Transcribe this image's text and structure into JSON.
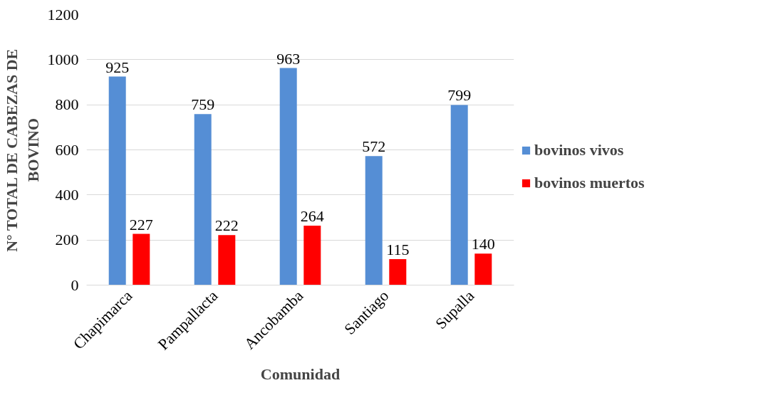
{
  "chart_data": {
    "type": "bar",
    "xlabel": "Comunidad",
    "ylabel": "N° TOTAL DE CABEZAS DE BOVINO",
    "categories": [
      "Chapimarca",
      "Pampallacta",
      "Ancobamba",
      "Santiago",
      "Supalla"
    ],
    "series": [
      {
        "name": "bovinos vivos",
        "color": "#558ed5",
        "values": [
          925,
          759,
          963,
          572,
          799
        ]
      },
      {
        "name": "bovinos muertos",
        "color": "#ff0000",
        "values": [
          227,
          222,
          264,
          115,
          140
        ]
      }
    ],
    "ylim": [
      0,
      1200
    ],
    "yticks": [
      0,
      200,
      400,
      600,
      800,
      1000,
      1200
    ],
    "grid": "y",
    "legend": "right",
    "data_labels": true
  }
}
